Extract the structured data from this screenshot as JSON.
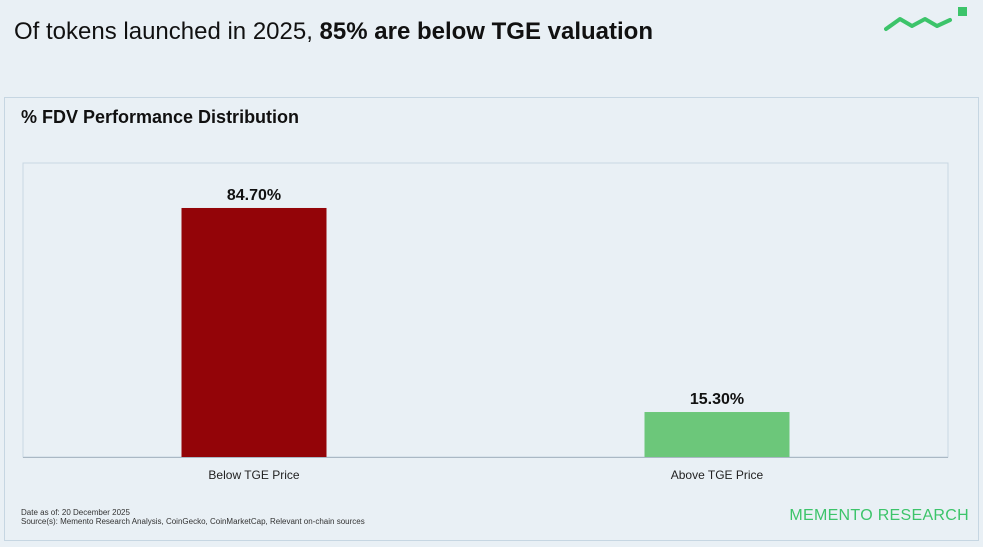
{
  "headline": {
    "prefix": "Of tokens launched in 2025, ",
    "emphasis": "85% are below TGE valuation"
  },
  "brand": {
    "name": "MEMENTO RESEARCH",
    "color": "#3cc46a",
    "logo_icon": "wave-line-icon"
  },
  "chart_data": {
    "type": "bar",
    "title": "% FDV Performance Distribution",
    "categories": [
      "Below TGE Price",
      "Above TGE Price"
    ],
    "values": [
      84.7,
      15.3
    ],
    "value_labels": [
      "84.70%",
      "15.30%"
    ],
    "colors": [
      "#930408",
      "#6cc77a"
    ],
    "xlabel": "",
    "ylabel": "",
    "ylim": [
      0,
      100
    ],
    "grid": false,
    "legend": "none"
  },
  "footer": {
    "date": "Date as of: 20 December 2025",
    "sources": "Source(s): Memento Research Analysis, CoinGecko, CoinMarketCap, Relevant on-chain sources"
  }
}
